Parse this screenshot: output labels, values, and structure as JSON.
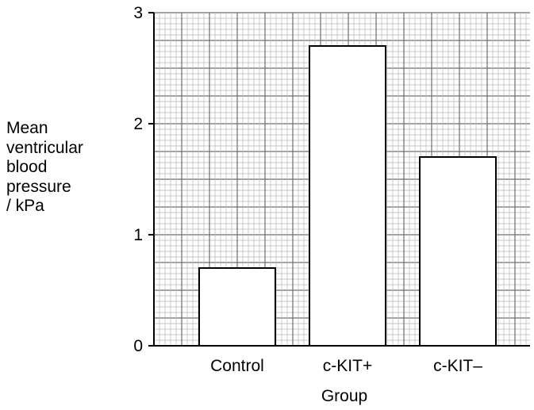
{
  "chart_data": {
    "type": "bar",
    "categories": [
      "Control",
      "c-KIT+",
      "c-KIT–"
    ],
    "values": [
      0.7,
      2.7,
      1.7
    ],
    "xlabel": "Group",
    "ylabel_lines": [
      "Mean",
      "ventricular",
      "blood",
      "pressure",
      "/ kPa"
    ],
    "ylim": [
      0,
      3
    ],
    "yticks": [
      "0",
      "1",
      "2",
      "3"
    ],
    "grid": true,
    "bar_fill": "#ffffff",
    "bar_stroke": "#000000",
    "grid_minor_color": "#b8b8b8",
    "grid_major_color": "#6e6e6e"
  }
}
